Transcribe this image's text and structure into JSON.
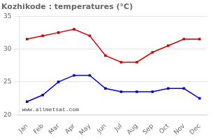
{
  "chart_data": {
    "type": "line",
    "title": "Kozhikode : temperatures (°C)",
    "categories": [
      "Jan",
      "Feb",
      "Mar",
      "Apr",
      "May",
      "Jun",
      "Jul",
      "Aug",
      "Sep",
      "Oct",
      "Nov",
      "Dec"
    ],
    "series": [
      {
        "color": "#cc0000",
        "values": [
          31.5,
          32.0,
          32.5,
          33.0,
          32.0,
          29.0,
          28.0,
          28.0,
          29.5,
          30.5,
          31.5,
          31.5
        ]
      },
      {
        "color": "#0000cc",
        "values": [
          22.0,
          23.0,
          25.0,
          26.0,
          26.0,
          24.0,
          23.5,
          23.5,
          23.5,
          24.0,
          24.0,
          22.5
        ]
      }
    ],
    "marker": "square",
    "ylim": [
      20,
      35
    ],
    "yticks": [
      20,
      25,
      30,
      35
    ],
    "grid": "y",
    "annotations": [
      "www.allmetsat.com"
    ]
  }
}
